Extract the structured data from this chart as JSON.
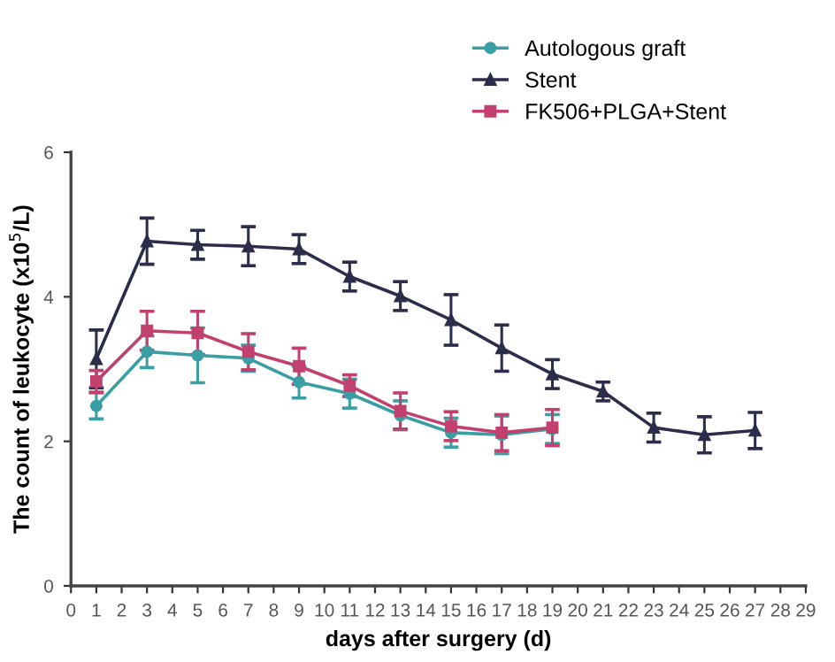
{
  "chart_data": {
    "type": "line",
    "xlabel": "days after surgery (d)",
    "ylabel": "The count of leukocyte (x10$^{5}$/L)",
    "xlim": [
      0,
      29
    ],
    "xticks": [
      0,
      1,
      2,
      3,
      4,
      5,
      6,
      7,
      8,
      9,
      10,
      11,
      12,
      13,
      14,
      15,
      16,
      17,
      18,
      19,
      20,
      21,
      22,
      23,
      24,
      25,
      26,
      27,
      28,
      29
    ],
    "ylim": [
      0,
      6
    ],
    "yticks": [
      0,
      2,
      4,
      6
    ],
    "grid": false,
    "legend": "top",
    "line_style": "solid",
    "series": [
      {
        "name": "Autologous graft",
        "color": "#3a9ea5",
        "marker": "circle",
        "x": [
          1,
          3,
          5,
          7,
          9,
          11,
          13,
          15,
          17,
          19
        ],
        "values": [
          2.49,
          3.24,
          3.19,
          3.15,
          2.82,
          2.66,
          2.36,
          2.12,
          2.09,
          2.17
        ],
        "errors": [
          0.18,
          0.22,
          0.38,
          0.18,
          0.22,
          0.2,
          0.2,
          0.2,
          0.26,
          0.2
        ]
      },
      {
        "name": "Stent",
        "color": "#2b2d4a",
        "marker": "triangle",
        "x": [
          1,
          3,
          5,
          7,
          9,
          11,
          13,
          15,
          17,
          19,
          21,
          23,
          25,
          27
        ],
        "values": [
          3.14,
          4.77,
          4.72,
          4.7,
          4.66,
          4.28,
          4.01,
          3.68,
          3.29,
          2.93,
          2.69,
          2.19,
          2.09,
          2.15
        ],
        "errors": [
          0.4,
          0.32,
          0.2,
          0.27,
          0.2,
          0.2,
          0.2,
          0.35,
          0.32,
          0.2,
          0.13,
          0.2,
          0.25,
          0.25
        ]
      },
      {
        "name": "FK506+PLGA+Stent",
        "color": "#c2406e",
        "marker": "square",
        "x": [
          1,
          3,
          5,
          7,
          9,
          11,
          13,
          15,
          17,
          19
        ],
        "values": [
          2.83,
          3.53,
          3.5,
          3.24,
          3.04,
          2.77,
          2.42,
          2.21,
          2.12,
          2.19
        ],
        "errors": [
          0.15,
          0.27,
          0.3,
          0.25,
          0.25,
          0.15,
          0.25,
          0.2,
          0.25,
          0.25
        ]
      }
    ]
  }
}
